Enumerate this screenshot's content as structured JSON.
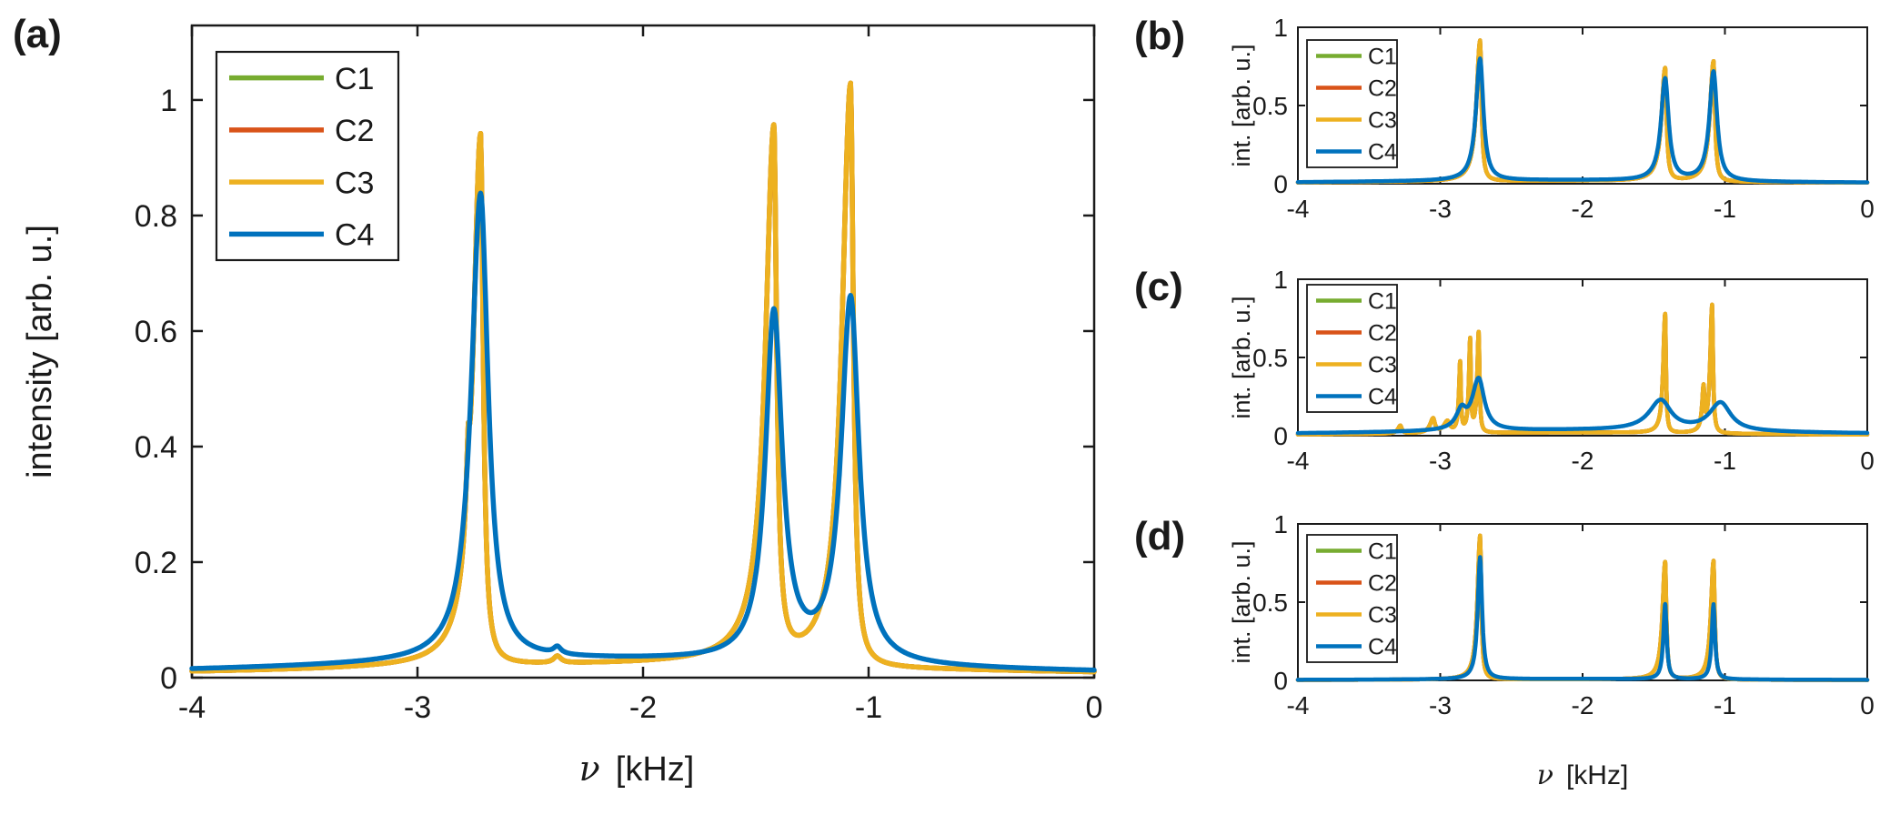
{
  "figure": {
    "background": "#ffffff"
  },
  "colors": {
    "C1": "#77AC30",
    "C2": "#D95319",
    "C3": "#EDB120",
    "C4": "#0072BD",
    "axis": "#1a1a1a"
  },
  "legend_labels": [
    "C1",
    "C2",
    "C3",
    "C4"
  ],
  "chart_data": [
    {
      "id": "a",
      "type": "line",
      "panel_label": "(a)",
      "xlabel_symbol": "ν",
      "xlabel_unit": "[kHz]",
      "ylabel": "intensity [arb. u.]",
      "xlim": [
        -4,
        0
      ],
      "ylim": [
        0,
        1.129
      ],
      "xticks": [
        -4,
        -3,
        -2,
        -1,
        0
      ],
      "xtick_labels": [
        "-4",
        "-3",
        "-2",
        "-1",
        "0"
      ],
      "yticks": [
        0,
        0.2,
        0.4,
        0.6,
        0.8,
        1
      ],
      "ytick_labels": [
        "0",
        "0.2",
        "0.4",
        "0.6",
        "0.8",
        "1"
      ],
      "show_xlabel": true,
      "grid": false,
      "legend": {
        "position": "top-left",
        "entries": [
          "C1",
          "C2",
          "C3",
          "C4"
        ]
      },
      "peak_centers_khz": [
        -2.72,
        -1.42,
        -1.08
      ],
      "series": [
        {
          "name": "C1",
          "color": "C1",
          "peaks": [
            [
              -2.72,
              0.92,
              0.04,
              0.014
            ],
            [
              -2.775,
              0.1,
              0.01,
              0.006
            ],
            [
              -1.42,
              0.92,
              0.045,
              0.015
            ],
            [
              -1.08,
              1.01,
              0.045,
              0.015
            ],
            [
              -2.38,
              0.012,
              0.02,
              0.02
            ],
            [
              -2.0,
              0.022,
              1.8,
              1.8
            ]
          ]
        },
        {
          "name": "C2",
          "color": "C2",
          "peaks": [
            [
              -2.72,
              0.92,
              0.04,
              0.014
            ],
            [
              -2.775,
              0.1,
              0.01,
              0.006
            ],
            [
              -1.42,
              0.92,
              0.045,
              0.015
            ],
            [
              -1.08,
              1.01,
              0.045,
              0.015
            ],
            [
              -2.38,
              0.012,
              0.02,
              0.02
            ],
            [
              -2.0,
              0.022,
              1.8,
              1.8
            ]
          ]
        },
        {
          "name": "C3",
          "color": "C3",
          "peaks": [
            [
              -2.72,
              0.92,
              0.04,
              0.014
            ],
            [
              -2.775,
              0.1,
              0.01,
              0.006
            ],
            [
              -1.42,
              0.92,
              0.045,
              0.015
            ],
            [
              -1.08,
              1.01,
              0.045,
              0.015
            ],
            [
              -2.38,
              0.012,
              0.02,
              0.02
            ],
            [
              -2.0,
              0.022,
              1.8,
              1.8
            ]
          ]
        },
        {
          "name": "C4",
          "color": "C4",
          "peaks": [
            [
              -2.72,
              0.81,
              0.05,
              0.04
            ],
            [
              -1.42,
              0.6,
              0.045,
              0.045
            ],
            [
              -1.08,
              0.63,
              0.05,
              0.045
            ],
            [
              -2.38,
              0.012,
              0.02,
              0.02
            ],
            [
              -2.2,
              0.03,
              1.7,
              1.7
            ]
          ]
        }
      ]
    },
    {
      "id": "b",
      "type": "line",
      "panel_label": "(b)",
      "xlabel_symbol": "ν",
      "xlabel_unit": "[kHz]",
      "ylabel": "int. [arb. u.]",
      "xlim": [
        -4,
        0
      ],
      "ylim": [
        0,
        1
      ],
      "xticks": [
        -4,
        -3,
        -2,
        -1,
        0
      ],
      "xtick_labels": [
        "-4",
        "-3",
        "-2",
        "-1",
        "0"
      ],
      "yticks": [
        0,
        0.5,
        1
      ],
      "ytick_labels": [
        "0",
        "0.5",
        "1"
      ],
      "show_xlabel": false,
      "grid": false,
      "legend": {
        "position": "top-left",
        "entries": [
          "C1",
          "C2",
          "C3",
          "C4"
        ]
      },
      "peak_centers_khz": [
        -2.72,
        -1.42,
        -1.08
      ],
      "series": [
        {
          "name": "C1",
          "color": "C1",
          "peaks": [
            [
              -2.72,
              0.9,
              0.03,
              0.012
            ],
            [
              -1.42,
              0.72,
              0.03,
              0.012
            ],
            [
              -1.08,
              0.77,
              0.03,
              0.012
            ],
            [
              -2.1,
              0.018,
              1.6,
              1.6
            ]
          ]
        },
        {
          "name": "C2",
          "color": "C2",
          "peaks": [
            [
              -2.72,
              0.9,
              0.03,
              0.012
            ],
            [
              -1.42,
              0.72,
              0.03,
              0.012
            ],
            [
              -1.08,
              0.77,
              0.03,
              0.012
            ],
            [
              -2.1,
              0.018,
              1.6,
              1.6
            ]
          ]
        },
        {
          "name": "C3",
          "color": "C3",
          "peaks": [
            [
              -2.72,
              0.9,
              0.03,
              0.012
            ],
            [
              -1.42,
              0.72,
              0.03,
              0.012
            ],
            [
              -1.08,
              0.77,
              0.03,
              0.012
            ],
            [
              -2.1,
              0.018,
              1.6,
              1.6
            ]
          ]
        },
        {
          "name": "C4",
          "color": "C4",
          "peaks": [
            [
              -2.72,
              0.78,
              0.035,
              0.028
            ],
            [
              -1.42,
              0.65,
              0.035,
              0.03
            ],
            [
              -1.08,
              0.7,
              0.035,
              0.03
            ],
            [
              -2.2,
              0.022,
              1.6,
              1.6
            ]
          ]
        }
      ]
    },
    {
      "id": "c",
      "type": "line",
      "panel_label": "(c)",
      "xlabel_symbol": "ν",
      "xlabel_unit": "[kHz]",
      "ylabel": "int. [arb. u.]",
      "xlim": [
        -4,
        0
      ],
      "ylim": [
        0,
        1
      ],
      "xticks": [
        -4,
        -3,
        -2,
        -1,
        0
      ],
      "xtick_labels": [
        "-4",
        "-3",
        "-2",
        "-1",
        "0"
      ],
      "yticks": [
        0,
        0.5,
        1
      ],
      "ytick_labels": [
        "0",
        "0.5",
        "1"
      ],
      "show_xlabel": false,
      "grid": false,
      "legend": {
        "position": "top-left",
        "entries": [
          "C1",
          "C2",
          "C3",
          "C4"
        ]
      },
      "peak_centers_khz": [
        -2.72,
        -1.42,
        -1.08
      ],
      "series": [
        {
          "name": "C1",
          "color": "C1",
          "peaks": [
            [
              -3.28,
              0.05,
              0.02,
              0.012
            ],
            [
              -3.05,
              0.09,
              0.025,
              0.015
            ],
            [
              -2.95,
              0.07,
              0.03,
              0.02
            ],
            [
              -2.86,
              0.44,
              0.01,
              0.006
            ],
            [
              -2.79,
              0.58,
              0.01,
              0.006
            ],
            [
              -2.73,
              0.64,
              0.012,
              0.007
            ],
            [
              -1.42,
              0.76,
              0.016,
              0.007
            ],
            [
              -1.15,
              0.26,
              0.012,
              0.007
            ],
            [
              -1.09,
              0.82,
              0.016,
              0.008
            ],
            [
              -2.1,
              0.02,
              1.5,
              1.5
            ]
          ]
        },
        {
          "name": "C2",
          "color": "C2",
          "peaks": [
            [
              -3.28,
              0.05,
              0.02,
              0.012
            ],
            [
              -3.05,
              0.09,
              0.025,
              0.015
            ],
            [
              -2.95,
              0.07,
              0.03,
              0.02
            ],
            [
              -2.86,
              0.44,
              0.01,
              0.006
            ],
            [
              -2.79,
              0.58,
              0.01,
              0.006
            ],
            [
              -2.73,
              0.64,
              0.012,
              0.007
            ],
            [
              -1.42,
              0.76,
              0.016,
              0.007
            ],
            [
              -1.15,
              0.26,
              0.012,
              0.007
            ],
            [
              -1.09,
              0.82,
              0.016,
              0.008
            ],
            [
              -2.1,
              0.02,
              1.5,
              1.5
            ]
          ]
        },
        {
          "name": "C3",
          "color": "C3",
          "peaks": [
            [
              -3.28,
              0.05,
              0.02,
              0.012
            ],
            [
              -3.05,
              0.09,
              0.025,
              0.015
            ],
            [
              -2.95,
              0.07,
              0.03,
              0.02
            ],
            [
              -2.86,
              0.44,
              0.01,
              0.006
            ],
            [
              -2.79,
              0.58,
              0.01,
              0.006
            ],
            [
              -2.73,
              0.64,
              0.012,
              0.007
            ],
            [
              -1.42,
              0.76,
              0.016,
              0.007
            ],
            [
              -1.15,
              0.26,
              0.012,
              0.007
            ],
            [
              -1.09,
              0.82,
              0.016,
              0.008
            ],
            [
              -2.1,
              0.02,
              1.5,
              1.5
            ]
          ]
        },
        {
          "name": "C4",
          "color": "C4",
          "peaks": [
            [
              -2.73,
              0.33,
              0.055,
              0.048
            ],
            [
              -2.85,
              0.11,
              0.045,
              0.035
            ],
            [
              -1.45,
              0.19,
              0.1,
              0.085
            ],
            [
              -1.03,
              0.18,
              0.095,
              0.085
            ],
            [
              -2.0,
              0.035,
              1.8,
              1.8
            ]
          ]
        }
      ]
    },
    {
      "id": "d",
      "type": "line",
      "panel_label": "(d)",
      "xlabel_symbol": "ν",
      "xlabel_unit": "[kHz]",
      "ylabel": "int. [arb. u.]",
      "xlim": [
        -4,
        0
      ],
      "ylim": [
        0,
        1
      ],
      "xticks": [
        -4,
        -3,
        -2,
        -1,
        0
      ],
      "xtick_labels": [
        "-4",
        "-3",
        "-2",
        "-1",
        "0"
      ],
      "yticks": [
        0,
        0.5,
        1
      ],
      "ytick_labels": [
        "0",
        "0.5",
        "1"
      ],
      "show_xlabel": true,
      "grid": false,
      "legend": {
        "position": "top-left",
        "entries": [
          "C1",
          "C2",
          "C3",
          "C4"
        ]
      },
      "peak_centers_khz": [
        -2.72,
        -1.42,
        -1.08
      ],
      "series": [
        {
          "name": "C1",
          "color": "C1",
          "peaks": [
            [
              -2.72,
              0.92,
              0.022,
              0.01
            ],
            [
              -1.42,
              0.75,
              0.022,
              0.01
            ],
            [
              -1.08,
              0.76,
              0.022,
              0.01
            ],
            [
              -2.1,
              0.006,
              1.5,
              1.5
            ]
          ]
        },
        {
          "name": "C2",
          "color": "C2",
          "peaks": [
            [
              -2.72,
              0.92,
              0.022,
              0.01
            ],
            [
              -1.42,
              0.75,
              0.022,
              0.01
            ],
            [
              -1.08,
              0.76,
              0.022,
              0.01
            ],
            [
              -2.1,
              0.006,
              1.5,
              1.5
            ]
          ]
        },
        {
          "name": "C3",
          "color": "C3",
          "peaks": [
            [
              -2.72,
              0.92,
              0.022,
              0.01
            ],
            [
              -1.42,
              0.75,
              0.022,
              0.01
            ],
            [
              -1.08,
              0.76,
              0.022,
              0.01
            ],
            [
              -2.1,
              0.006,
              1.5,
              1.5
            ]
          ]
        },
        {
          "name": "C4",
          "color": "C4",
          "peaks": [
            [
              -2.72,
              0.78,
              0.02,
              0.017
            ],
            [
              -1.42,
              0.48,
              0.015,
              0.013
            ],
            [
              -1.08,
              0.48,
              0.015,
              0.013
            ],
            [
              -2.1,
              0.009,
              1.5,
              1.5
            ]
          ]
        }
      ]
    }
  ]
}
